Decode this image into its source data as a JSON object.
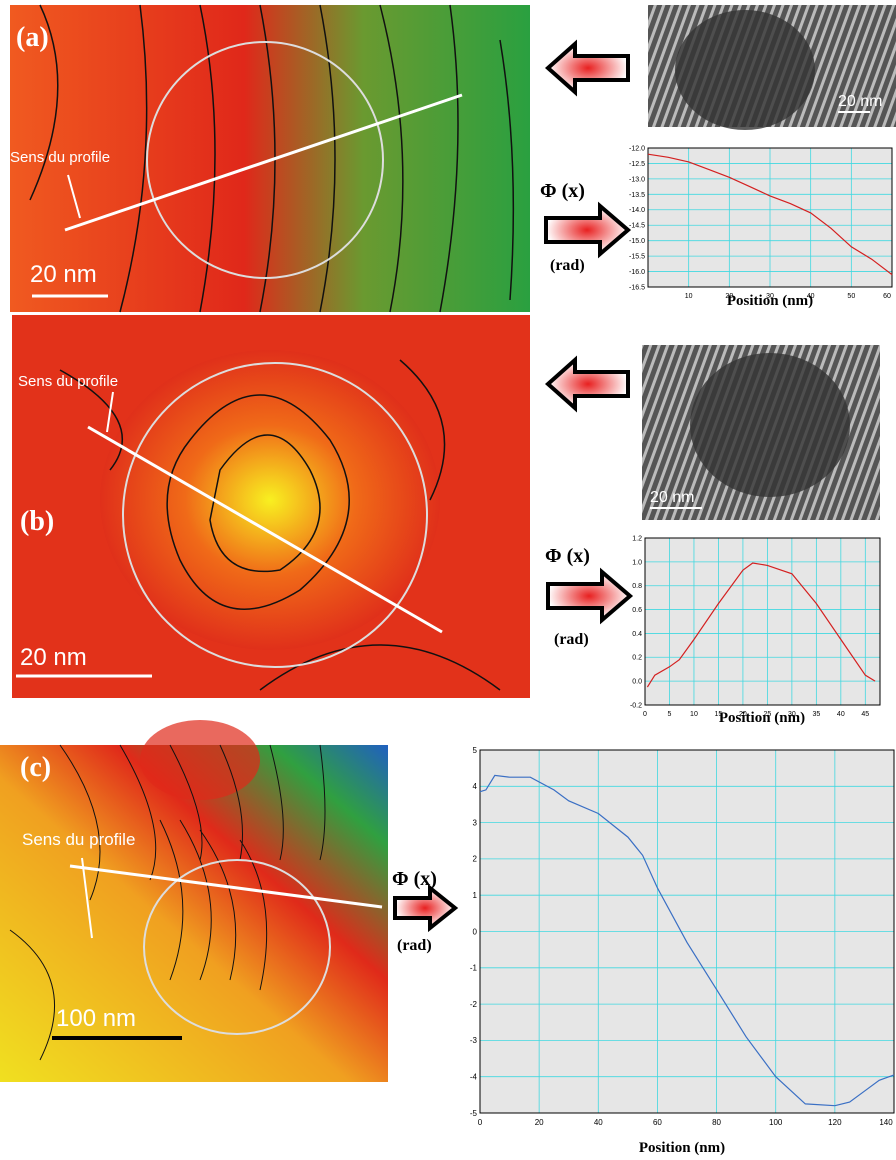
{
  "panels": [
    {
      "label": "(a)",
      "scale_bar": "20 nm",
      "profile_label": "Sens  du profile",
      "tem_scale_bar": "20 nm",
      "phi_label": "Φ (x)",
      "unit_label": "(rad)"
    },
    {
      "label": "(b)",
      "scale_bar": "20 nm",
      "profile_label": "Sens du profile",
      "tem_scale_bar": "20 nm",
      "phi_label": "Φ (x)",
      "unit_label": "(rad)"
    },
    {
      "label": "(c)",
      "scale_bar": "100 nm",
      "profile_label": "Sens du profile",
      "phi_label": "Φ (x)",
      "unit_label": "(rad)"
    }
  ],
  "chart_data": [
    {
      "type": "line",
      "x_label": "Position (nm)",
      "x": [
        0,
        5,
        10,
        15,
        20,
        25,
        30,
        35,
        40,
        45,
        50,
        55,
        60
      ],
      "series": [
        {
          "color": "#d42020",
          "values": [
            -12.2,
            -12.3,
            -12.45,
            -12.7,
            -12.95,
            -13.25,
            -13.55,
            -13.8,
            -14.1,
            -14.6,
            -15.2,
            -15.6,
            -16.1
          ]
        }
      ],
      "xlim": [
        0,
        60
      ],
      "xticks": [
        10,
        20,
        30,
        40,
        50,
        60
      ],
      "ylim": [
        -16.5,
        -12.0
      ],
      "yticks": [
        {
          "value": -12.0,
          "label": "-12.0"
        },
        -12.5,
        {
          "value": -13.0,
          "label": "-13.0"
        },
        -13.5,
        {
          "value": -14.0,
          "label": "-14.0"
        },
        -14.5,
        {
          "value": -15.0,
          "label": "-15.0"
        },
        -15.5,
        {
          "value": -16.0,
          "label": "-16.0"
        },
        -16.5
      ],
      "grid": true
    },
    {
      "type": "line",
      "x_label": "Position (nm)",
      "x": [
        0.5,
        2,
        5,
        7,
        10,
        15,
        20,
        22,
        25,
        30,
        35,
        40,
        45,
        47
      ],
      "series": [
        {
          "color": "#d42020",
          "values": [
            -0.05,
            0.05,
            0.12,
            0.18,
            0.35,
            0.65,
            0.93,
            0.99,
            0.97,
            0.9,
            0.65,
            0.35,
            0.05,
            0.0
          ]
        }
      ],
      "xlim": [
        0,
        48
      ],
      "xticks": [
        0,
        5,
        10,
        15,
        20,
        25,
        30,
        35,
        40,
        45
      ],
      "ylim": [
        -0.2,
        1.2
      ],
      "yticks": [
        -0.2,
        {
          "value": 0.0,
          "label": "0.0"
        },
        0.2,
        0.4,
        0.6,
        0.8,
        {
          "value": 1.0,
          "label": "1.0"
        },
        1.2
      ],
      "grid": true
    },
    {
      "type": "line",
      "x_label": "Position (nm)",
      "x": [
        0,
        2,
        5,
        10,
        17,
        25,
        30,
        40,
        50,
        55,
        60,
        70,
        80,
        90,
        100,
        110,
        120,
        125,
        130,
        135,
        140
      ],
      "series": [
        {
          "color": "#3a6fc4",
          "values": [
            3.85,
            3.9,
            4.3,
            4.25,
            4.25,
            3.9,
            3.6,
            3.25,
            2.6,
            2.1,
            1.2,
            -0.3,
            -1.6,
            -2.9,
            -4.0,
            -4.75,
            -4.8,
            -4.7,
            -4.4,
            -4.1,
            -3.95
          ]
        }
      ],
      "xlim": [
        0,
        140
      ],
      "xticks": [
        0,
        20,
        40,
        60,
        80,
        100,
        120,
        140
      ],
      "ylim": [
        -5,
        5
      ],
      "yticks": [
        -5,
        -4,
        -3,
        -2,
        -1,
        0,
        1,
        2,
        3,
        4,
        5
      ],
      "grid": true
    }
  ]
}
